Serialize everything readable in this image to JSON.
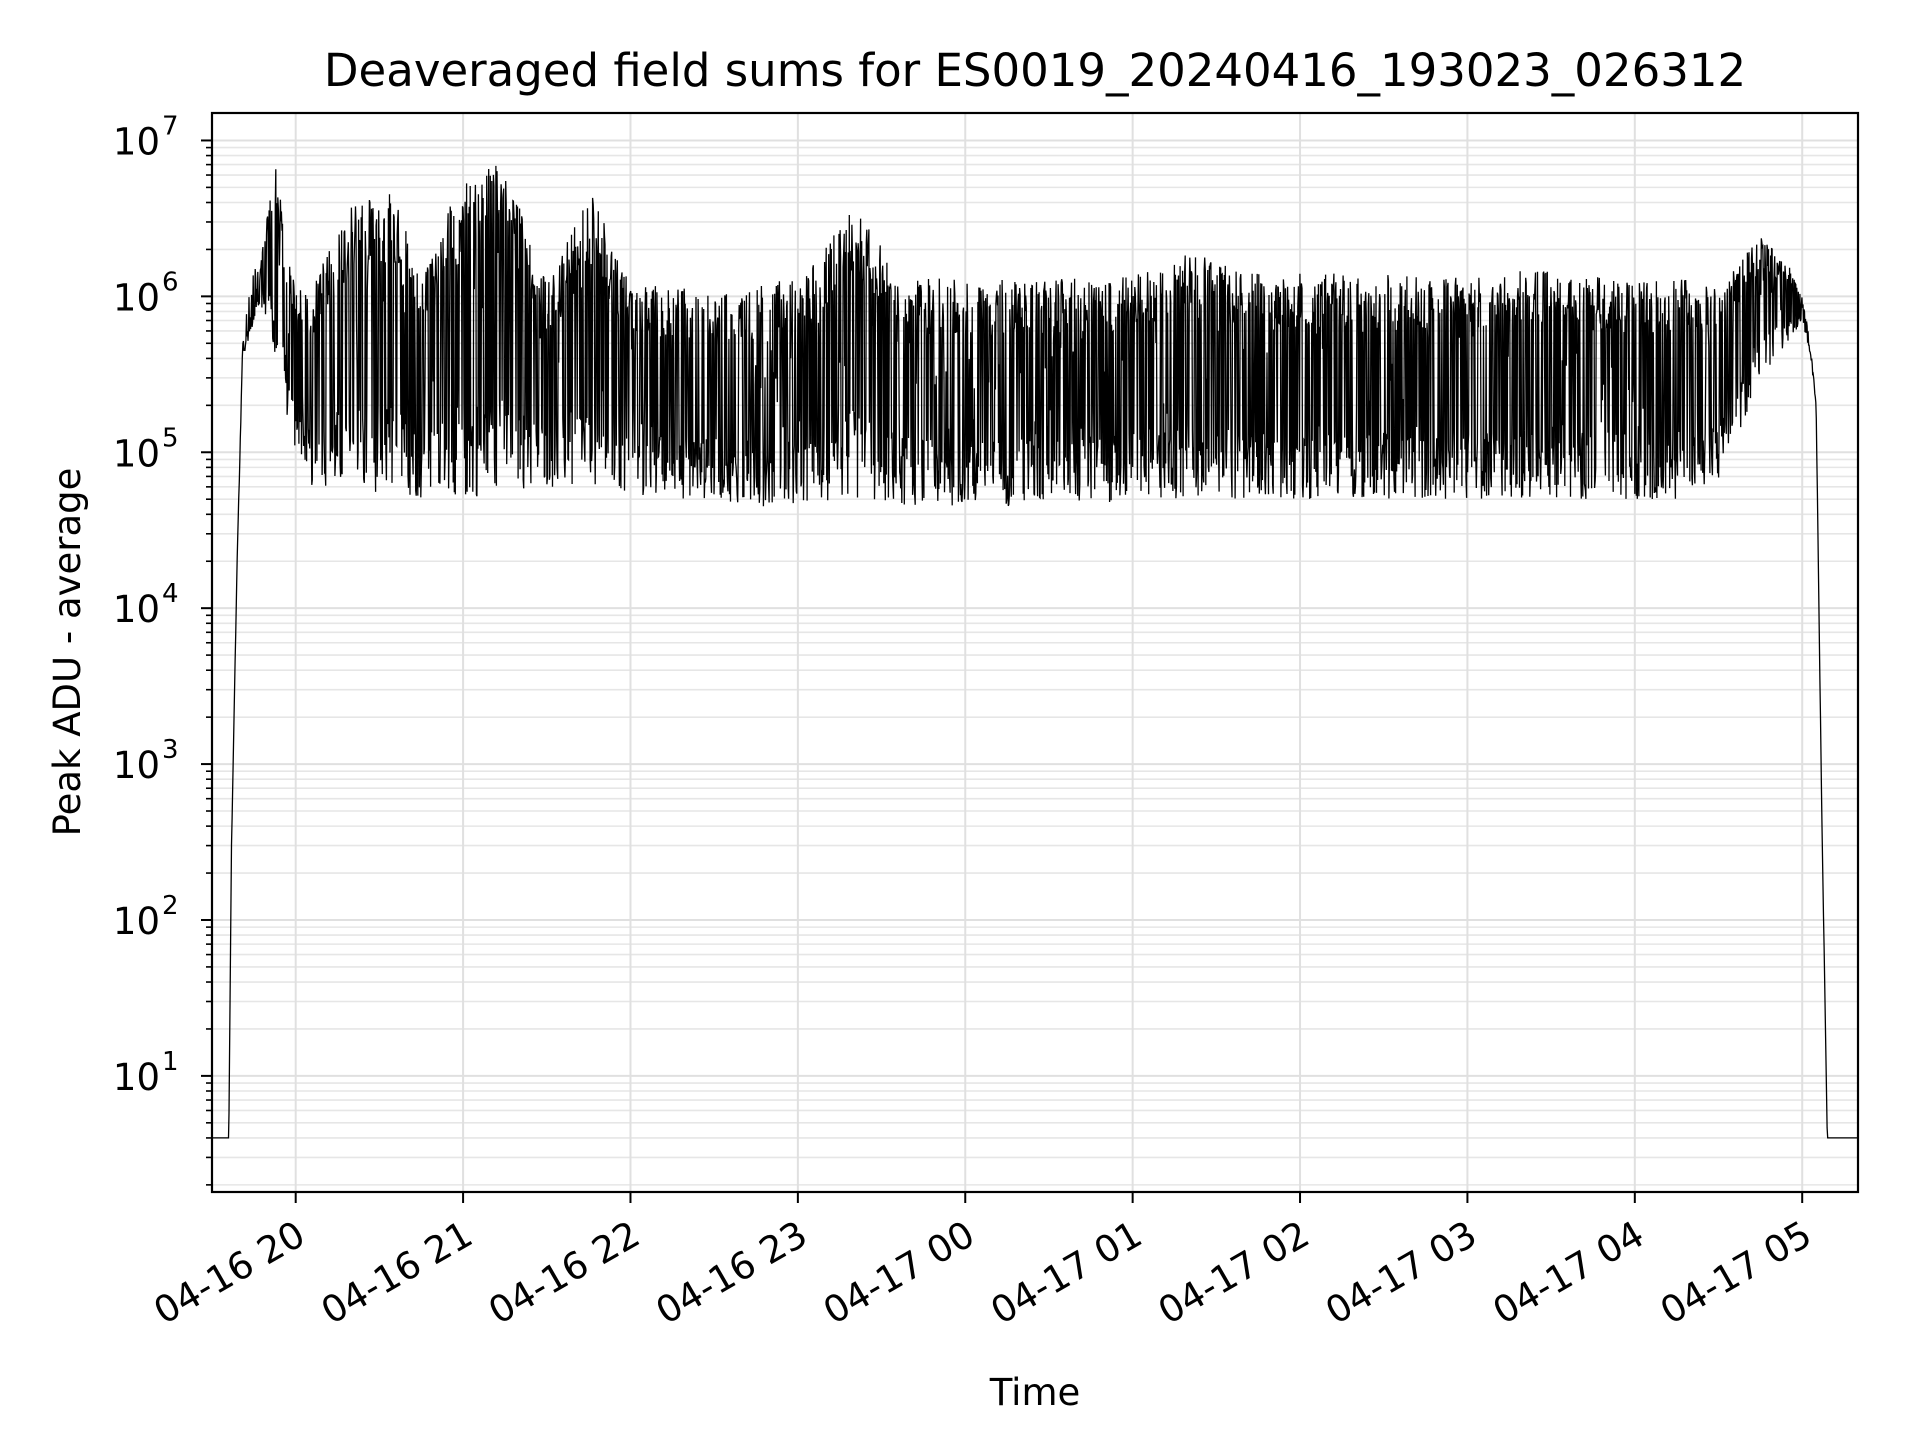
{
  "chart_data": {
    "type": "line",
    "title": "Deaveraged field sums for ES0019_20240416_193023_026312",
    "xlabel": "Time",
    "ylabel": "Peak ADU - average",
    "xscale": "time",
    "yscale": "log",
    "xlim": [
      "2024-04-16 19:30",
      "2024-04-17 05:20"
    ],
    "ylim": [
      1.8,
      15000000
    ],
    "x_ticks": [
      "04-16 20",
      "04-16 21",
      "04-16 22",
      "04-16 23",
      "04-17 00",
      "04-17 01",
      "04-17 02",
      "04-17 03",
      "04-17 04",
      "04-17 05"
    ],
    "y_ticks": [
      {
        "base": "10",
        "exp": "1"
      },
      {
        "base": "10",
        "exp": "2"
      },
      {
        "base": "10",
        "exp": "3"
      },
      {
        "base": "10",
        "exp": "4"
      },
      {
        "base": "10",
        "exp": "5"
      },
      {
        "base": "10",
        "exp": "6"
      },
      {
        "base": "10",
        "exp": "7"
      }
    ],
    "grid": "major and minor",
    "legend": "none",
    "series": [
      {
        "color": "#000000",
        "x": [
          "2024-04-16 19:30",
          "2024-04-16 19:36",
          "2024-04-16 19:37",
          "2024-04-16 19:39",
          "2024-04-16 19:41",
          "2024-04-16 19:44",
          "2024-04-16 19:47",
          "2024-04-16 19:50",
          "2024-04-16 19:53",
          "2024-04-16 19:56",
          "2024-04-16 20:00",
          "2024-04-16 20:05",
          "2024-04-16 20:15",
          "2024-04-16 20:25",
          "2024-04-16 20:35",
          "2024-04-16 20:45",
          "2024-04-16 21:00",
          "2024-04-16 21:15",
          "2024-04-16 21:30",
          "2024-04-16 21:45",
          "2024-04-16 22:00",
          "2024-04-16 22:15",
          "2024-04-16 22:30",
          "2024-04-16 22:45",
          "2024-04-16 23:00",
          "2024-04-16 23:20",
          "2024-04-16 23:40",
          "2024-04-17 00:00",
          "2024-04-17 00:20",
          "2024-04-17 00:40",
          "2024-04-17 01:00",
          "2024-04-17 01:20",
          "2024-04-17 01:40",
          "2024-04-17 02:00",
          "2024-04-17 02:20",
          "2024-04-17 02:40",
          "2024-04-17 03:00",
          "2024-04-17 03:20",
          "2024-04-17 03:40",
          "2024-04-17 04:00",
          "2024-04-17 04:15",
          "2024-04-17 04:30",
          "2024-04-17 04:45",
          "2024-04-17 04:55",
          "2024-04-17 05:00",
          "2024-04-17 05:03",
          "2024-04-17 05:05",
          "2024-04-17 05:07",
          "2024-04-17 05:09",
          "2024-04-17 05:20"
        ],
        "low": [
          4,
          4,
          300,
          20000,
          400000,
          600000,
          800000,
          700000,
          300000,
          200000,
          100000,
          60000,
          60000,
          55000,
          55000,
          50000,
          50000,
          55000,
          60000,
          55000,
          50000,
          50000,
          50000,
          45000,
          45000,
          50000,
          45000,
          45000,
          45000,
          45000,
          50000,
          50000,
          50000,
          50000,
          50000,
          50000,
          50000,
          50000,
          50000,
          50000,
          50000,
          60000,
          300000,
          500000,
          700000,
          400000,
          200000,
          500,
          4,
          4
        ],
        "high": [
          4,
          4,
          300,
          20000,
          500000,
          1500000,
          1500000,
          3500000,
          7500000,
          2500000,
          1200000,
          1000000,
          2800000,
          5000000,
          5000000,
          1200000,
          6500000,
          7000000,
          1200000,
          5000000,
          1200000,
          1200000,
          1000000,
          1200000,
          1300000,
          4000000,
          1300000,
          1300000,
          1300000,
          1300000,
          1400000,
          2000000,
          1400000,
          1400000,
          1400000,
          1400000,
          1400000,
          1500000,
          1400000,
          1300000,
          1300000,
          1200000,
          2400000,
          1600000,
          1000000,
          500000,
          200000,
          500,
          4,
          4
        ]
      }
    ]
  }
}
